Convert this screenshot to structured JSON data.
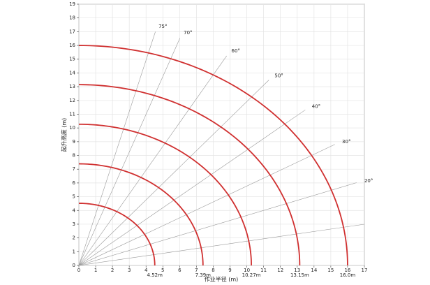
{
  "chart_data": {
    "type": "arc",
    "xlabel": "作业半径 (m)",
    "ylabel": "起升高度 (m)",
    "xlim": [
      0,
      17
    ],
    "ylim": [
      0,
      19
    ],
    "xticks": [
      0,
      1,
      2,
      3,
      4,
      5,
      6,
      7,
      8,
      9,
      10,
      11,
      12,
      13,
      14,
      15,
      16,
      17
    ],
    "yticks": [
      0,
      1,
      2,
      3,
      4,
      5,
      6,
      7,
      8,
      9,
      10,
      11,
      12,
      13,
      14,
      15,
      16,
      17,
      18,
      19
    ],
    "grid": true,
    "series": [
      {
        "name": "radius",
        "color": "#d03030",
        "values": [
          4.52,
          7.39,
          10.27,
          13.15,
          16.0
        ],
        "value_labels": [
          "4.52m",
          "7.39m",
          "10.27m",
          "13.15m",
          "16.0m"
        ]
      }
    ],
    "boom_angles": {
      "color": "#999999",
      "values": [
        10,
        20,
        30,
        40,
        50,
        60,
        70,
        75
      ],
      "value_labels": [
        null,
        "20°",
        "30°",
        "40°",
        "50°",
        "60°",
        "70°",
        "75°"
      ]
    }
  }
}
